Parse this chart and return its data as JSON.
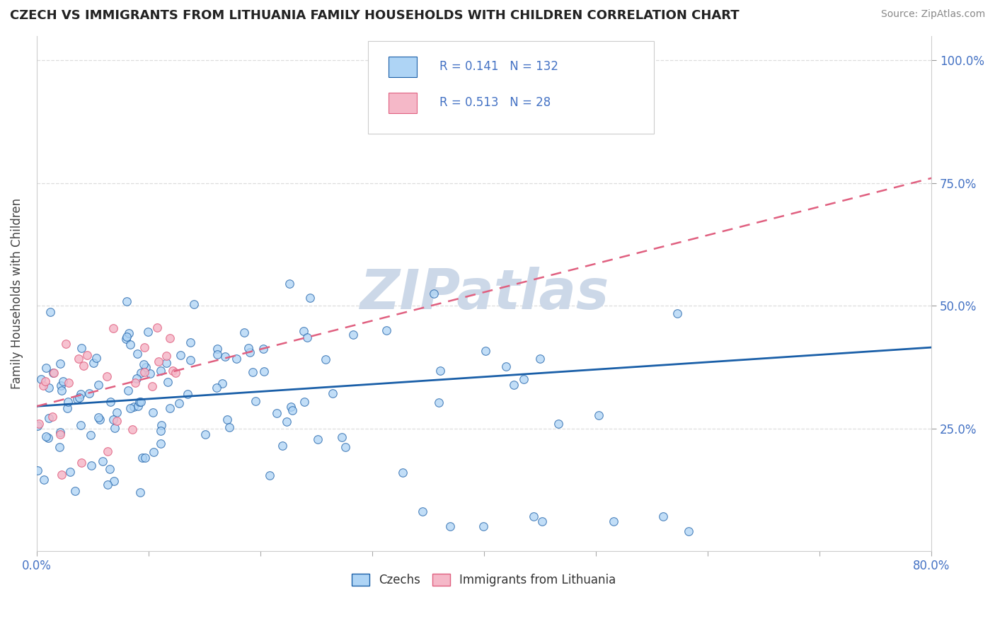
{
  "title": "CZECH VS IMMIGRANTS FROM LITHUANIA FAMILY HOUSEHOLDS WITH CHILDREN CORRELATION CHART",
  "source": "Source: ZipAtlas.com",
  "ylabel": "Family Households with Children",
  "r_czech": 0.141,
  "n_czech": 132,
  "r_lith": 0.513,
  "n_lith": 28,
  "legend_labels": [
    "Czechs",
    "Immigrants from Lithuania"
  ],
  "color_czech": "#aed4f5",
  "color_lith": "#f5b8c8",
  "line_color_czech": "#1a5fa8",
  "line_color_lith": "#e06080",
  "watermark": "ZIPatlas",
  "watermark_color": "#ccd8e8",
  "background_color": "#ffffff",
  "xlim": [
    0.0,
    0.8
  ],
  "ylim": [
    0.0,
    1.05
  ],
  "title_color": "#222222",
  "source_color": "#888888",
  "tick_color": "#4472c4",
  "ylabel_color": "#444444",
  "grid_color": "#dddddd",
  "legend_text_color": "#4472c4",
  "czech_trend_start_y": 0.295,
  "czech_trend_end_y": 0.415,
  "lith_trend_start_y": 0.295,
  "lith_trend_end_y": 0.76
}
